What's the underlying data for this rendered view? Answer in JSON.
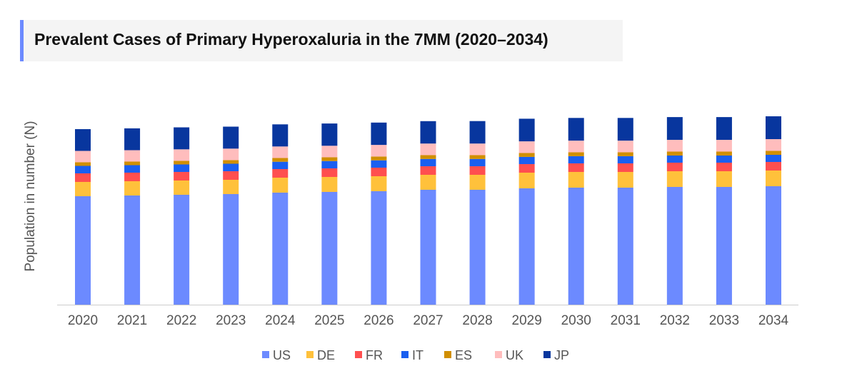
{
  "chart_data": {
    "type": "bar",
    "stacked": true,
    "title": "Prevalent Cases of Primary Hyperoxaluria in the 7MM (2020–2034)",
    "xlabel": "",
    "ylabel": "Population in number (N)",
    "ylim": [
      0,
      270
    ],
    "grid": false,
    "legend_position": "bottom",
    "categories": [
      "2020",
      "2021",
      "2022",
      "2023",
      "2024",
      "2025",
      "2026",
      "2027",
      "2028",
      "2029",
      "2030",
      "2031",
      "2032",
      "2033",
      "2034"
    ],
    "series": [
      {
        "name": "US",
        "color": "#6c8aff",
        "values": [
          152,
          153,
          154,
          155,
          157,
          158,
          159,
          161,
          161,
          163,
          164,
          164,
          165,
          165,
          166
        ]
      },
      {
        "name": "DE",
        "color": "#ffc13b",
        "values": [
          20,
          20,
          20,
          20,
          21,
          21,
          21,
          21,
          21,
          22,
          22,
          22,
          22,
          22,
          22
        ]
      },
      {
        "name": "FR",
        "color": "#ff4f4f",
        "values": [
          12,
          12,
          12,
          12,
          12,
          12,
          12,
          12,
          12,
          12,
          12,
          12,
          12,
          12,
          12
        ]
      },
      {
        "name": "IT",
        "color": "#1a5ff0",
        "values": [
          10.5,
          10.5,
          10.5,
          10.5,
          10.3,
          10.3,
          10.3,
          10.2,
          10.2,
          10.1,
          10.1,
          10.1,
          10,
          10,
          10
        ]
      },
      {
        "name": "ES",
        "color": "#d18f00",
        "values": [
          5,
          5,
          5.1,
          5.1,
          5.2,
          5.2,
          5.3,
          5.3,
          5.3,
          5.4,
          5.4,
          5.4,
          5.5,
          5.5,
          5.5
        ]
      },
      {
        "name": "UK",
        "color": "#ffbdbd",
        "values": [
          16,
          16,
          16.1,
          16.1,
          16.2,
          16.2,
          16.3,
          16.3,
          16.3,
          16.4,
          16.4,
          16.4,
          16.5,
          16.5,
          16.5
        ]
      },
      {
        "name": "JP",
        "color": "#08369e",
        "values": [
          30.5,
          30.6,
          30.8,
          30.8,
          31,
          31.2,
          31.3,
          31.4,
          31.5,
          31.7,
          31.8,
          31.8,
          31.9,
          31.9,
          32
        ]
      }
    ]
  }
}
